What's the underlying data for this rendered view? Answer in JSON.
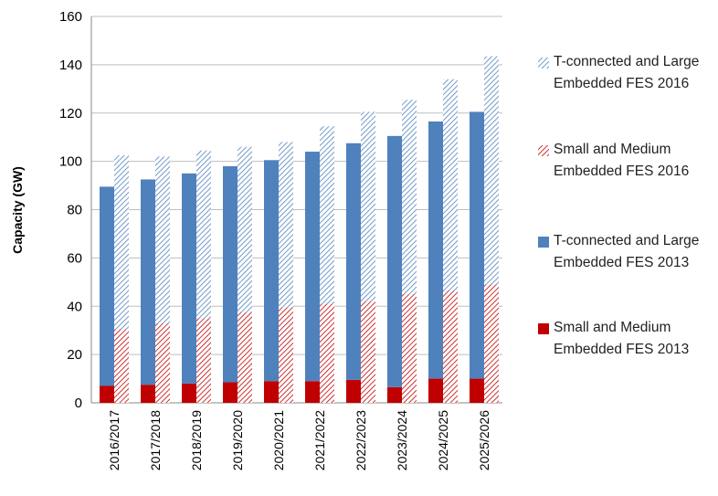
{
  "chart_data": {
    "type": "bar",
    "stacked": true,
    "y_label": "Capacity (GW)",
    "categories": [
      "2016/2017",
      "2017/2018",
      "2018/2019",
      "2019/2020",
      "2020/2021",
      "2021/2022",
      "2022/2023",
      "2023/2024",
      "2024/2025",
      "2025/2026"
    ],
    "series": [
      {
        "name": "T-connected and Large Embedded FES 2016",
        "color": "#4f81bd",
        "hatched": true,
        "stack": 2,
        "values": [
          72,
          69,
          69.5,
          68.5,
          68.5,
          73.5,
          78.5,
          80.5,
          87.5,
          94.5
        ]
      },
      {
        "name": "Small and Medium Embedded FES 2016",
        "color": "#c00000",
        "hatched": true,
        "stack": 2,
        "values": [
          30.5,
          33,
          35,
          37.5,
          39.5,
          41,
          42,
          45,
          46.5,
          49
        ]
      },
      {
        "name": "T-connected and Large Embedded FES 2013",
        "color": "#4f81bd",
        "hatched": false,
        "stack": 1,
        "values": [
          82.5,
          85,
          87,
          89.5,
          91.5,
          95,
          98,
          104,
          106.5,
          110.5
        ]
      },
      {
        "name": "Small and Medium Embedded FES 2013",
        "color": "#c00000",
        "hatched": false,
        "stack": 1,
        "values": [
          7,
          7.5,
          8,
          8.5,
          9,
          9,
          9.5,
          6.5,
          10,
          10
        ]
      }
    ],
    "ylim": [
      0,
      160
    ],
    "yticks": [
      0,
      20,
      40,
      60,
      80,
      100,
      120,
      140,
      160
    ],
    "grid": true,
    "legend": "right"
  }
}
